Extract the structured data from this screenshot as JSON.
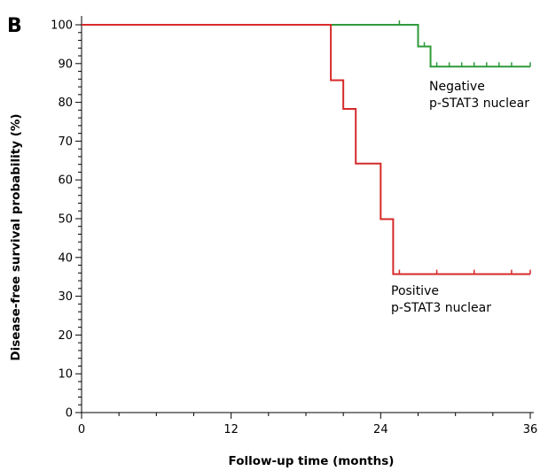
{
  "panel_label": "B",
  "chart_data": {
    "type": "line",
    "title": "",
    "xlabel": "Follow-up time (months)",
    "ylabel": "Disease-free survival probability (%)",
    "xlim": [
      0,
      36
    ],
    "ylim": [
      0,
      100
    ],
    "x_ticks": [
      0,
      12,
      24,
      36
    ],
    "x_tick_labels": [
      "0",
      "12",
      "24",
      "36"
    ],
    "y_ticks": [
      0,
      10,
      20,
      30,
      40,
      50,
      60,
      70,
      80,
      90,
      100
    ],
    "y_tick_labels": [
      "0",
      "10",
      "20",
      "30",
      "40",
      "50",
      "60",
      "70",
      "80",
      "90",
      "100"
    ],
    "grid": false,
    "series": [
      {
        "name": "Negative p-STAT3 nuclear",
        "label_lines": [
          "Negative",
          "p-STAT3 nuclear"
        ],
        "color": "#2e9a3a",
        "style": "step",
        "x": [
          0,
          27,
          28,
          36
        ],
        "y": [
          100,
          94.4,
          89.2,
          89.2
        ],
        "censor_x": [
          25.5,
          27.5,
          28.5,
          29.5,
          30.5,
          31.5,
          32.5,
          33.5,
          34.5,
          36
        ]
      },
      {
        "name": "Positive p-STAT3 nuclear",
        "label_lines": [
          "Positive",
          "p-STAT3 nuclear"
        ],
        "color": "#d62a2a",
        "style": "step",
        "x": [
          0,
          20,
          21,
          22,
          24,
          25,
          36
        ],
        "y": [
          100,
          85.7,
          78.3,
          64.2,
          49.9,
          35.7,
          35.7
        ],
        "censor_x": [
          25.5,
          28.5,
          31.5,
          34.5,
          36
        ]
      }
    ]
  }
}
